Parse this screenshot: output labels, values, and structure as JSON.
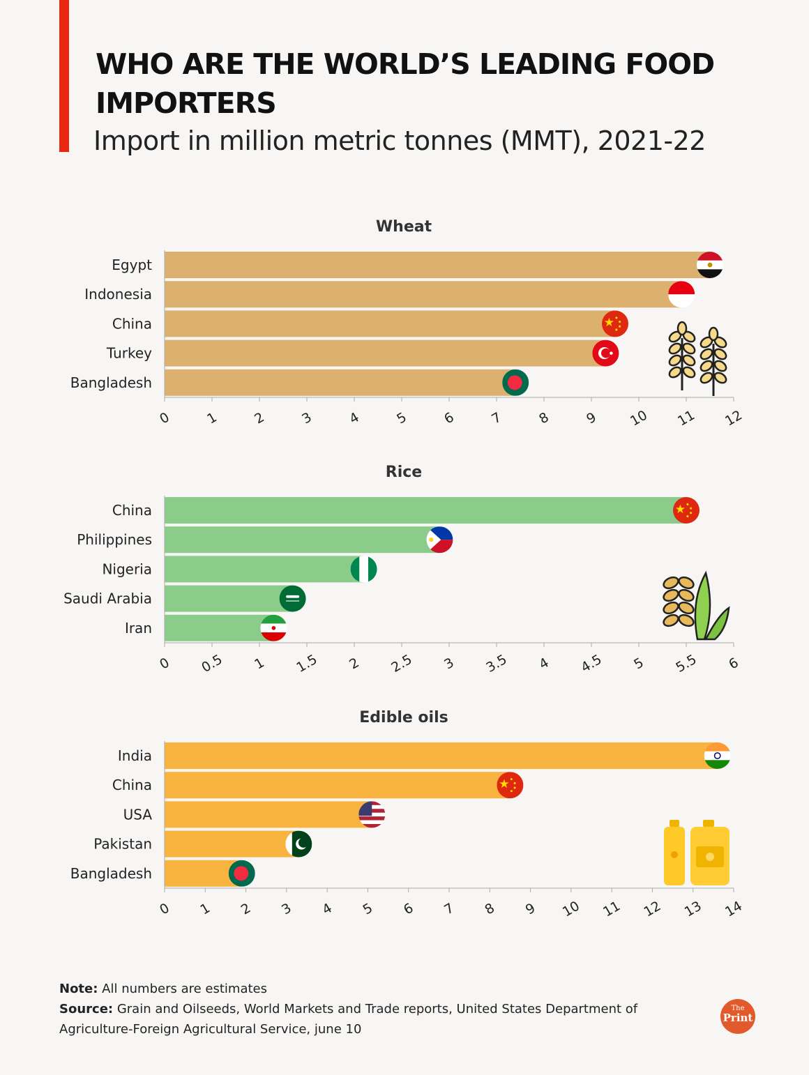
{
  "header": {
    "title": "WHO ARE THE WORLD’S LEADING FOOD IMPORTERS",
    "subtitle": "Import in million metric tonnes (MMT), 2021-22"
  },
  "colors": {
    "accent": "#e8290f",
    "wheat": "#dcb06f",
    "rice": "#8bcc8b",
    "oils": "#f8b43e",
    "axis": "#999999"
  },
  "chart_data": [
    {
      "type": "bar",
      "orientation": "horizontal",
      "title": "Wheat",
      "categories": [
        "Egypt",
        "Indonesia",
        "China",
        "Turkey",
        "Bangladesh"
      ],
      "values": [
        11.5,
        10.9,
        9.5,
        9.3,
        7.4
      ],
      "xlim": [
        0,
        12
      ],
      "ticks": [
        "0",
        "1",
        "2",
        "3",
        "4",
        "5",
        "6",
        "7",
        "8",
        "9",
        "10",
        "11",
        "12"
      ],
      "color": "#dcb06f",
      "icon": "wheat-icon"
    },
    {
      "type": "bar",
      "orientation": "horizontal",
      "title": "Rice",
      "categories": [
        "China",
        "Philippines",
        "Nigeria",
        "Saudi Arabia",
        "Iran"
      ],
      "values": [
        5.5,
        2.9,
        2.1,
        1.35,
        1.15
      ],
      "xlim": [
        0,
        6
      ],
      "ticks": [
        "0",
        "0.5",
        "1",
        "1.5",
        "2",
        "2.5",
        "3",
        "3.5",
        "4",
        "4.5",
        "5",
        "5.5",
        "6"
      ],
      "color": "#8bcc8b",
      "icon": "rice-icon"
    },
    {
      "type": "bar",
      "orientation": "horizontal",
      "title": "Edible oils",
      "categories": [
        "India",
        "China",
        "USA",
        "Pakistan",
        "Bangladesh"
      ],
      "values": [
        13.6,
        8.5,
        5.1,
        3.3,
        1.9
      ],
      "xlim": [
        0,
        14
      ],
      "ticks": [
        "0",
        "1",
        "2",
        "3",
        "4",
        "5",
        "6",
        "7",
        "8",
        "9",
        "10",
        "11",
        "12",
        "13",
        "14"
      ],
      "color": "#f8b43e",
      "icon": "oil-bottles-icon"
    }
  ],
  "footer": {
    "note_label": "Note:",
    "note_text": " All numbers are estimates",
    "source_label": "Source:",
    "source_text": " Grain and Oilseeds, World Markets and Trade reports, United States Department of Agriculture-Foreign Agricultural Service, june 10"
  },
  "logo": {
    "the": "The",
    "print": "Print"
  }
}
